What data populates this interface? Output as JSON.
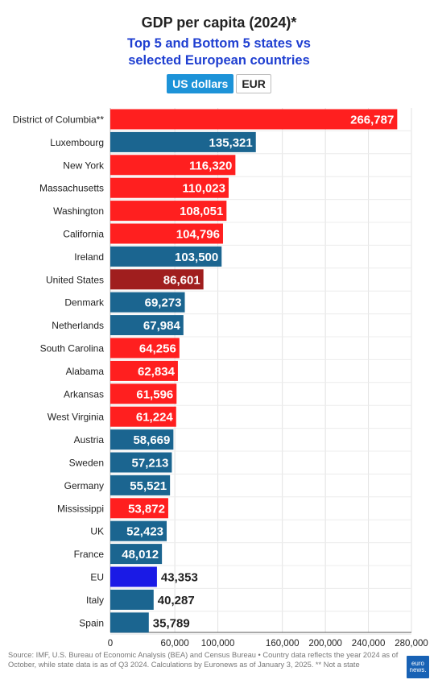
{
  "header": {
    "title": "GDP per capita (2024)*",
    "subtitle_line1": "Top 5 and Bottom 5 states vs",
    "subtitle_line2": "selected European countries"
  },
  "toggle": {
    "usd_label": "US dollars",
    "eur_label": "EUR",
    "active": "US dollars"
  },
  "colors": {
    "state": "#ff1f1f",
    "country": "#1b6590",
    "united_states": "#a01e1e",
    "eu": "#1a1ae6",
    "toggle_active": "#1d93d8"
  },
  "chart_data": {
    "type": "bar",
    "orientation": "horizontal",
    "title": "GDP per capita (2024)*",
    "subtitle": "Top 5 and Bottom 5 states vs selected European countries",
    "xlim": [
      0,
      280000
    ],
    "grid": true,
    "x_ticks": [
      "0",
      "60,000",
      "100,000",
      "160,000",
      "200,000",
      "240,000",
      "280,000"
    ],
    "x_tick_values": [
      0,
      60000,
      100000,
      160000,
      200000,
      240000,
      280000
    ],
    "bars": [
      {
        "label": "District of Columbia**",
        "value": 266787,
        "display": "266,787",
        "group": "state"
      },
      {
        "label": "Luxembourg",
        "value": 135321,
        "display": "135,321",
        "group": "country"
      },
      {
        "label": "New York",
        "value": 116320,
        "display": "116,320",
        "group": "state"
      },
      {
        "label": "Massachusetts",
        "value": 110023,
        "display": "110,023",
        "group": "state"
      },
      {
        "label": "Washington",
        "value": 108051,
        "display": "108,051",
        "group": "state"
      },
      {
        "label": "California",
        "value": 104796,
        "display": "104,796",
        "group": "state"
      },
      {
        "label": "Ireland",
        "value": 103500,
        "display": "103,500",
        "group": "country"
      },
      {
        "label": "United States",
        "value": 86601,
        "display": "86,601",
        "group": "united_states"
      },
      {
        "label": "Denmark",
        "value": 69273,
        "display": "69,273",
        "group": "country"
      },
      {
        "label": "Netherlands",
        "value": 67984,
        "display": "67,984",
        "group": "country"
      },
      {
        "label": "South Carolina",
        "value": 64256,
        "display": "64,256",
        "group": "state"
      },
      {
        "label": "Alabama",
        "value": 62834,
        "display": "62,834",
        "group": "state"
      },
      {
        "label": "Arkansas",
        "value": 61596,
        "display": "61,596",
        "group": "state"
      },
      {
        "label": "West Virginia",
        "value": 61224,
        "display": "61,224",
        "group": "state"
      },
      {
        "label": "Austria",
        "value": 58669,
        "display": "58,669",
        "group": "country"
      },
      {
        "label": "Sweden",
        "value": 57213,
        "display": "57,213",
        "group": "country"
      },
      {
        "label": "Germany",
        "value": 55521,
        "display": "55,521",
        "group": "country"
      },
      {
        "label": "Mississippi",
        "value": 53872,
        "display": "53,872",
        "group": "state"
      },
      {
        "label": "UK",
        "value": 52423,
        "display": "52,423",
        "group": "country"
      },
      {
        "label": "France",
        "value": 48012,
        "display": "48,012",
        "group": "country"
      },
      {
        "label": "EU",
        "value": 43353,
        "display": "43,353",
        "group": "eu"
      },
      {
        "label": "Italy",
        "value": 40287,
        "display": "40,287",
        "group": "country"
      },
      {
        "label": "Spain",
        "value": 35789,
        "display": "35,789",
        "group": "country"
      }
    ]
  },
  "footer": {
    "source": "Source: IMF, U.S. Bureau of Economic Analysis (BEA) and Census Bureau • Country data reflects the year 2024 as of October, while state data is as of Q3 2024. Calculations by Euronews as of January 3, 2025. ** Not a state",
    "logo_text": "euro news."
  }
}
